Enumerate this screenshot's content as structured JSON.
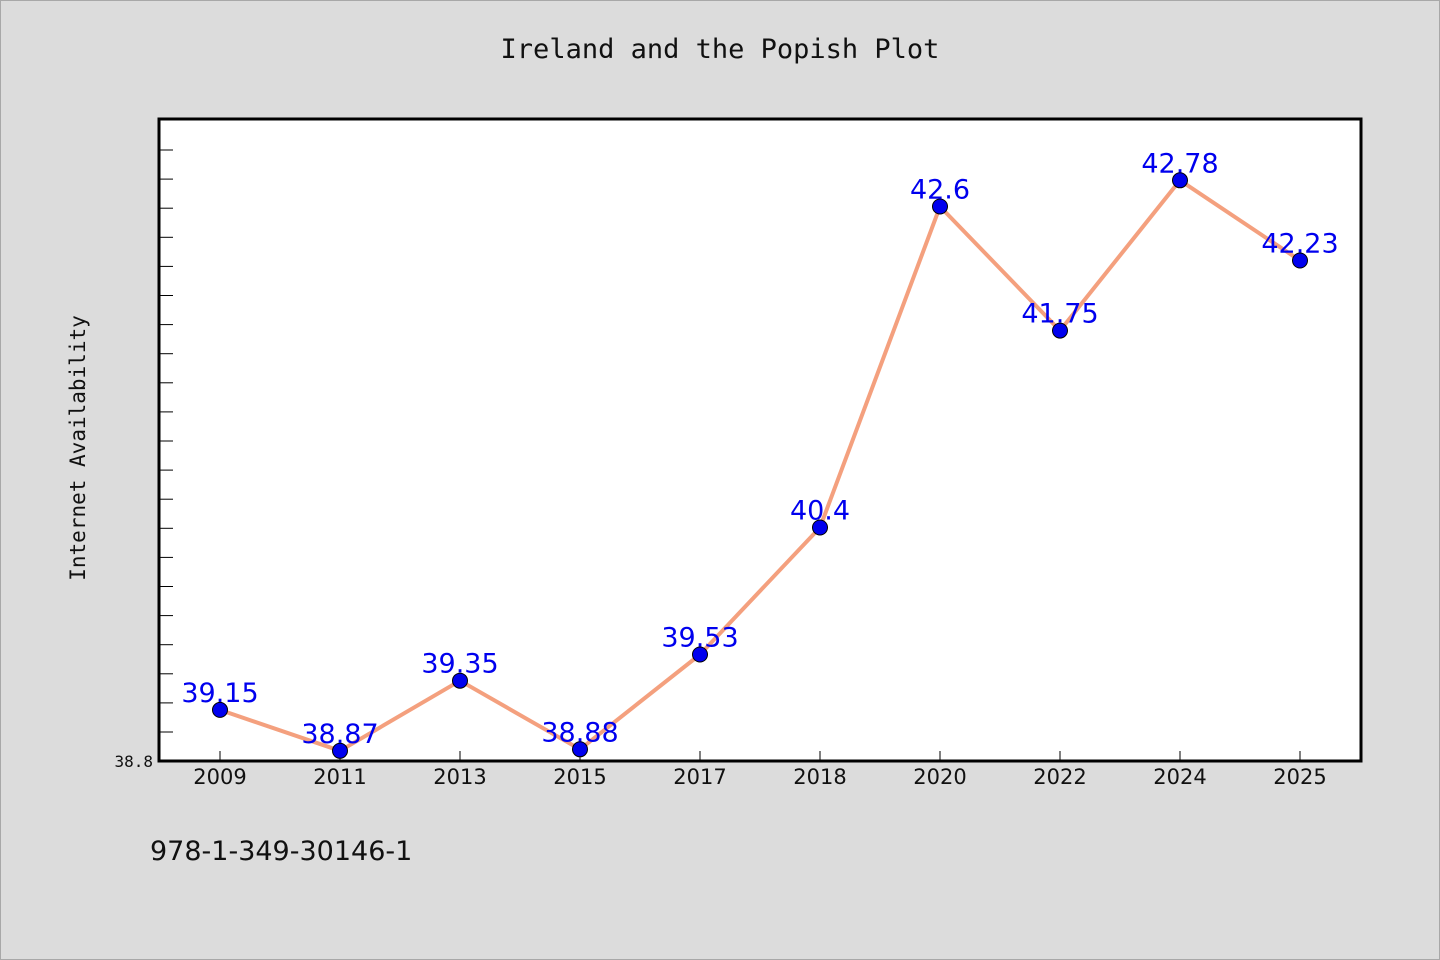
{
  "footer_text": "978-1-349-30146-1",
  "colors": {
    "background": "#dcdcdc",
    "plot_background": "#ffffff",
    "line": "#f4a07e",
    "marker": "#0000ee",
    "data_label": "#0000ee",
    "text": "#111111"
  },
  "chart_data": {
    "type": "line",
    "title": "Ireland and the Popish Plot",
    "xlabel": "",
    "ylabel": "Internet Availability",
    "categories": [
      "2009",
      "2011",
      "2013",
      "2015",
      "2017",
      "2018",
      "2020",
      "2022",
      "2024",
      "2025"
    ],
    "series": [
      {
        "values": [
          39.15,
          38.87,
          39.35,
          38.88,
          39.53,
          40.4,
          42.6,
          41.75,
          42.78,
          42.23
        ],
        "labels": [
          "39.15",
          "38.87",
          "39.35",
          "38.88",
          "39.53",
          "40.4",
          "42.6",
          "41.75",
          "42.78",
          "42.23"
        ]
      }
    ],
    "y_tick_labels": [
      "38.8"
    ],
    "ylim": [
      38.8,
      43.2
    ],
    "grid": false,
    "legend": "none"
  }
}
